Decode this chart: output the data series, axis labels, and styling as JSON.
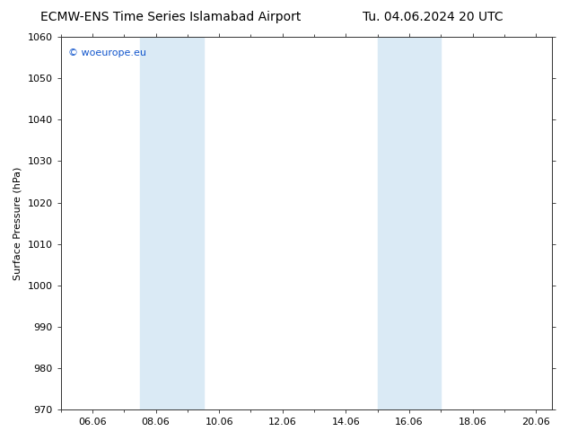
{
  "title_left": "ECMW-ENS Time Series Islamabad Airport",
  "title_right": "Tu. 04.06.2024 20 UTC",
  "ylabel": "Surface Pressure (hPa)",
  "ylim": [
    970,
    1060
  ],
  "yticks": [
    970,
    980,
    990,
    1000,
    1010,
    1020,
    1030,
    1040,
    1050,
    1060
  ],
  "xlim": [
    5.0,
    20.5
  ],
  "xtick_labels": [
    "06.06",
    "08.06",
    "10.06",
    "12.06",
    "14.06",
    "16.06",
    "18.06",
    "20.06"
  ],
  "xtick_positions": [
    6,
    8,
    10,
    12,
    14,
    16,
    18,
    20
  ],
  "shaded_bands": [
    {
      "x_start": 7.5,
      "x_end": 9.5
    },
    {
      "x_start": 15.0,
      "x_end": 17.0
    }
  ],
  "shaded_color": "#daeaf5",
  "watermark": "© woeurope.eu",
  "watermark_color": "#1155cc",
  "bg_color": "#ffffff",
  "plot_bg_color": "#ffffff",
  "title_fontsize": 10,
  "axis_label_fontsize": 8,
  "tick_fontsize": 8
}
